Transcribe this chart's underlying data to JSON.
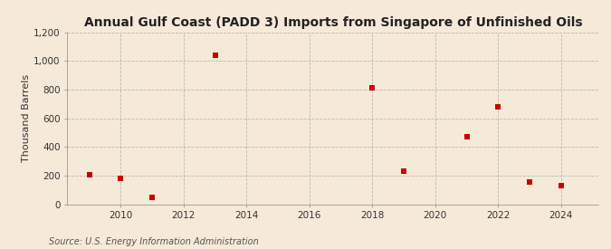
{
  "title": "Annual Gulf Coast (PADD 3) Imports from Singapore of Unfinished Oils",
  "ylabel": "Thousand Barrels",
  "source": "Source: U.S. Energy Information Administration",
  "background_color": "#f5ead8",
  "plot_bg_color": "#f5ead8",
  "marker_color": "#cc0000",
  "data_points": [
    {
      "year": 2009,
      "value": 203
    },
    {
      "year": 2010,
      "value": 182
    },
    {
      "year": 2011,
      "value": 50
    },
    {
      "year": 2013,
      "value": 1040
    },
    {
      "year": 2018,
      "value": 810
    },
    {
      "year": 2019,
      "value": 232
    },
    {
      "year": 2021,
      "value": 470
    },
    {
      "year": 2022,
      "value": 678
    },
    {
      "year": 2023,
      "value": 155
    },
    {
      "year": 2024,
      "value": 130
    }
  ],
  "xlim": [
    2008.3,
    2025.2
  ],
  "ylim": [
    0,
    1200
  ],
  "yticks": [
    0,
    200,
    400,
    600,
    800,
    1000,
    1200
  ],
  "ytick_labels": [
    "0",
    "200",
    "400",
    "600",
    "800",
    "1,000",
    "1,200"
  ],
  "xticks": [
    2010,
    2012,
    2014,
    2016,
    2018,
    2020,
    2022,
    2024
  ],
  "title_fontsize": 10,
  "label_fontsize": 8,
  "tick_fontsize": 7.5,
  "source_fontsize": 7,
  "marker_size": 4,
  "grid_color": "#aaaaaa",
  "grid_linestyle": "--",
  "grid_linewidth": 0.6
}
